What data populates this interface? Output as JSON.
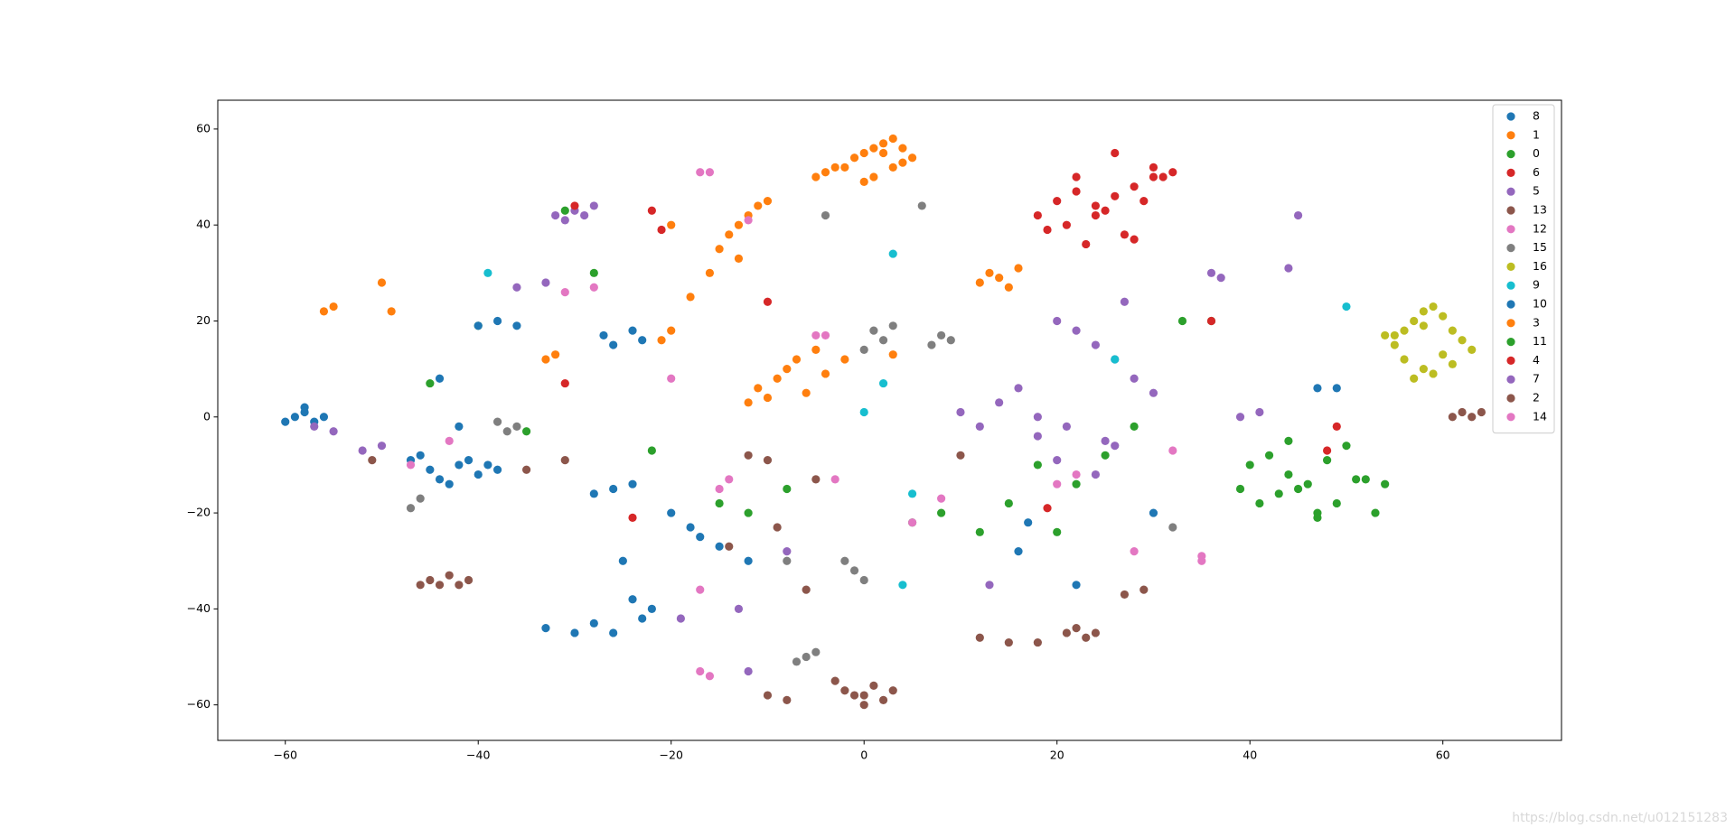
{
  "chart_data": {
    "type": "scatter",
    "xlim": [
      -67,
      72.3
    ],
    "ylim": [
      -67.4,
      66
    ],
    "xticks": [
      {
        "value": -60,
        "label": "−60"
      },
      {
        "value": -40,
        "label": "−40"
      },
      {
        "value": -20,
        "label": "−20"
      },
      0,
      20,
      40,
      60
    ],
    "yticks": [
      {
        "value": -60,
        "label": "−60"
      },
      {
        "value": -40,
        "label": "−40"
      },
      {
        "value": -20,
        "label": "−20"
      },
      0,
      20,
      40,
      60
    ],
    "legend": "upper right",
    "watermark": "https://blog.csdn.net/u012151283",
    "series": [
      {
        "name": "8",
        "color": "#1f77b4",
        "x": [
          -60,
          -59,
          -58,
          -57,
          -58,
          -56,
          -47,
          -45,
          -44,
          -42,
          -40,
          -39,
          -46,
          -43,
          -41,
          -38,
          -33,
          -30,
          -28,
          -26,
          -24,
          -22,
          -23,
          -25,
          -27,
          -26,
          -24,
          -23
        ],
        "y": [
          -1,
          0,
          1,
          -1,
          2,
          0,
          -9,
          -11,
          -13,
          -10,
          -12,
          -10,
          -8,
          -14,
          -9,
          -11,
          -44,
          -45,
          -43,
          -45,
          -38,
          -40,
          -42,
          -30,
          17,
          15,
          18,
          16
        ]
      },
      {
        "name": "1",
        "color": "#ff7f0e",
        "x": [
          -2,
          -1,
          0,
          1,
          2,
          3,
          4,
          5,
          1,
          3,
          -4,
          -5,
          -3,
          2,
          4,
          0,
          -14,
          -13,
          -12,
          -11,
          -15,
          -13,
          -10,
          -16,
          -18,
          -20
        ],
        "y": [
          52,
          54,
          55,
          56,
          57,
          58,
          56,
          54,
          50,
          52,
          51,
          50,
          52,
          55,
          53,
          49,
          38,
          40,
          42,
          44,
          35,
          33,
          45,
          30,
          25,
          40
        ]
      },
      {
        "name": "0",
        "color": "#2ca02c",
        "x": [
          -31,
          -28,
          -15,
          -12,
          -8,
          5,
          8,
          12,
          15,
          18,
          22,
          25,
          28,
          33,
          36,
          -22,
          -35,
          -45,
          -40,
          20
        ],
        "y": [
          43,
          30,
          -18,
          -20,
          -15,
          -22,
          -20,
          -24,
          -18,
          -10,
          -14,
          -8,
          -2,
          20,
          20,
          -7,
          -3,
          7,
          19,
          -24
        ]
      },
      {
        "name": "6",
        "color": "#d62728",
        "x": [
          18,
          20,
          22,
          24,
          26,
          28,
          30,
          32,
          21,
          23,
          25,
          27,
          29,
          31,
          19,
          24,
          28,
          26,
          22,
          30
        ],
        "y": [
          42,
          45,
          47,
          44,
          46,
          48,
          50,
          51,
          40,
          36,
          43,
          38,
          45,
          50,
          39,
          42,
          37,
          55,
          50,
          52
        ]
      },
      {
        "name": "5",
        "color": "#9467bd",
        "x": [
          -32,
          -30,
          -28,
          -31,
          -29,
          20,
          22,
          24,
          26,
          28,
          30,
          18,
          21,
          25,
          27,
          44,
          45,
          36,
          37,
          -57,
          -55,
          -33,
          -36
        ],
        "y": [
          42,
          43,
          44,
          41,
          42,
          20,
          18,
          15,
          12,
          8,
          5,
          0,
          -2,
          -5,
          24,
          31,
          42,
          30,
          29,
          -2,
          -3,
          28,
          27
        ]
      },
      {
        "name": "13",
        "color": "#8c564b",
        "x": [
          -45,
          -44,
          -43,
          -42,
          -41,
          -46,
          -2,
          -1,
          0,
          1,
          2,
          3,
          -3,
          0,
          -10,
          -8,
          21,
          22,
          23,
          24,
          -14,
          10
        ],
        "y": [
          -34,
          -35,
          -33,
          -35,
          -34,
          -35,
          -57,
          -58,
          -60,
          -56,
          -59,
          -57,
          -55,
          -58,
          -58,
          -59,
          -45,
          -44,
          -46,
          -45,
          -27,
          -8
        ]
      },
      {
        "name": "12",
        "color": "#e377c2",
        "x": [
          -17,
          -16,
          -17,
          -16,
          35,
          35,
          -17,
          -12,
          5,
          8,
          -47,
          -43,
          28
        ],
        "y": [
          51,
          51,
          -53,
          -54,
          -30,
          -29,
          -36,
          41,
          -22,
          -17,
          -10,
          -5,
          -28
        ]
      },
      {
        "name": "15",
        "color": "#7f7f7f",
        "x": [
          1,
          2,
          3,
          0,
          8,
          7,
          9,
          -6,
          -7,
          -5,
          -2,
          -1,
          0,
          -38,
          -37,
          -36,
          -46,
          -47,
          -4,
          6,
          32,
          -8
        ],
        "y": [
          18,
          16,
          19,
          14,
          17,
          15,
          16,
          -50,
          -51,
          -49,
          -30,
          -32,
          -34,
          -1,
          -3,
          -2,
          -17,
          -19,
          42,
          44,
          -23,
          -30
        ]
      },
      {
        "name": "16",
        "color": "#bcbd22",
        "x": [
          55,
          56,
          57,
          58,
          59,
          60,
          61,
          62,
          56,
          58,
          60,
          57,
          59,
          61,
          55,
          63,
          54,
          58
        ],
        "y": [
          15,
          18,
          20,
          22,
          23,
          21,
          18,
          16,
          12,
          10,
          13,
          8,
          9,
          11,
          17,
          14,
          17,
          19
        ]
      },
      {
        "name": "9",
        "color": "#17becf",
        "x": [
          -39,
          2,
          0,
          3,
          50,
          26,
          5,
          4
        ],
        "y": [
          30,
          7,
          1,
          34,
          23,
          12,
          -16,
          -35
        ]
      },
      {
        "name": "10",
        "color": "#1f77b4",
        "x": [
          -40,
          -38,
          -36,
          -28,
          -26,
          -24,
          -20,
          -18,
          -17,
          -15,
          -12,
          16,
          17,
          -42,
          -44,
          22,
          30,
          49,
          47
        ],
        "y": [
          19,
          20,
          19,
          -16,
          -15,
          -14,
          -20,
          -23,
          -25,
          -27,
          -30,
          -28,
          -22,
          -2,
          8,
          -35,
          -20,
          6,
          6
        ]
      },
      {
        "name": "3",
        "color": "#ff7f0e",
        "x": [
          -9,
          -8,
          -7,
          -6,
          -10,
          -11,
          -12,
          -5,
          -4,
          12,
          13,
          14,
          15,
          16,
          -32,
          -33,
          -56,
          -55,
          -50,
          -49,
          -2,
          3,
          -20,
          -21
        ],
        "y": [
          8,
          10,
          12,
          5,
          4,
          6,
          3,
          14,
          9,
          28,
          30,
          29,
          27,
          31,
          13,
          12,
          22,
          23,
          28,
          22,
          12,
          13,
          18,
          16
        ]
      },
      {
        "name": "11",
        "color": "#2ca02c",
        "x": [
          40,
          42,
          44,
          46,
          48,
          50,
          52,
          54,
          41,
          43,
          45,
          47,
          49,
          51,
          53,
          47,
          39,
          44
        ],
        "y": [
          -10,
          -8,
          -12,
          -14,
          -9,
          -6,
          -13,
          -14,
          -18,
          -16,
          -15,
          -20,
          -18,
          -13,
          -20,
          -21,
          -15,
          -5
        ]
      },
      {
        "name": "4",
        "color": "#d62728",
        "x": [
          -30,
          -22,
          -21,
          -10,
          -31,
          -24,
          19,
          48,
          49,
          36
        ],
        "y": [
          44,
          43,
          39,
          24,
          7,
          -21,
          -19,
          -7,
          -2,
          20
        ]
      },
      {
        "name": "7",
        "color": "#9467bd",
        "x": [
          10,
          12,
          14,
          16,
          18,
          20,
          24,
          26,
          -8,
          -13,
          -19,
          -50,
          -52,
          39,
          41,
          -12,
          13
        ],
        "y": [
          1,
          -2,
          3,
          6,
          -4,
          -9,
          -12,
          -6,
          -28,
          -40,
          -42,
          -6,
          -7,
          0,
          1,
          -53,
          -35
        ]
      },
      {
        "name": "2",
        "color": "#8c564b",
        "x": [
          -35,
          -31,
          -12,
          -10,
          -9,
          -6,
          15,
          18,
          27,
          29,
          61,
          62,
          63,
          64,
          12,
          -5,
          -51
        ],
        "y": [
          -11,
          -9,
          -8,
          -9,
          -23,
          -36,
          -47,
          -47,
          -37,
          -36,
          0,
          1,
          0,
          1,
          -46,
          -13,
          -9
        ]
      },
      {
        "name": "14",
        "color": "#e377c2",
        "x": [
          -28,
          -31,
          -20,
          -14,
          -15,
          -5,
          -4,
          -3,
          22,
          20,
          32
        ],
        "y": [
          27,
          26,
          8,
          -13,
          -15,
          17,
          17,
          -13,
          -12,
          -14,
          -7
        ]
      }
    ]
  }
}
